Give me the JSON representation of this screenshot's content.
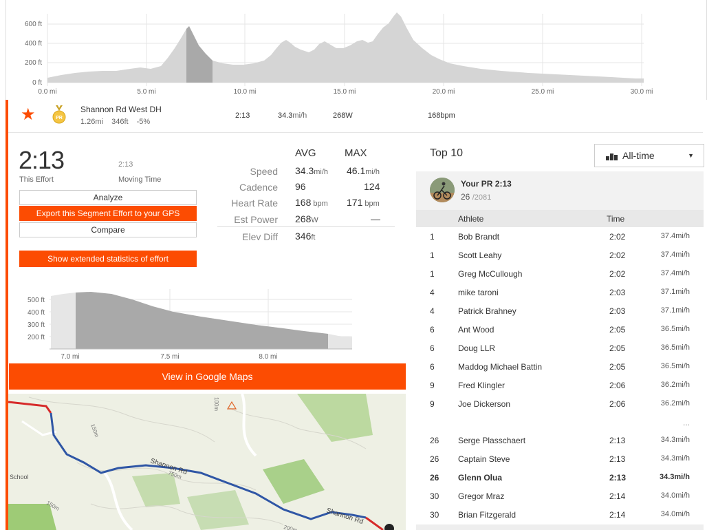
{
  "top_elevation": {
    "y_ticks": [
      "600 ft",
      "400 ft",
      "200 ft",
      "0 ft"
    ],
    "x_ticks": [
      "0.0 mi",
      "5.0 mi",
      "10.0 mi",
      "15.0 mi",
      "20.0 mi",
      "25.0 mi",
      "30.0 mi"
    ]
  },
  "segment": {
    "name": "Shannon Rd West DH",
    "distance": "1.26mi",
    "elev": "346ft",
    "grade": "-5%",
    "time": "2:13",
    "speed": "34.3",
    "speed_unit": "mi/h",
    "power": "268W",
    "hr": "168bpm",
    "pr_badge": "PR"
  },
  "effort": {
    "time": "2:13",
    "time_label": "This Effort",
    "moving_time": "2:13",
    "moving_label": "Moving Time"
  },
  "buttons": {
    "analyze": "Analyze",
    "export": "Export this Segment Effort to your GPS",
    "compare": "Compare",
    "extended": "Show extended statistics of effort",
    "maps": "View in Google Maps"
  },
  "stats": {
    "avg_header": "AVG",
    "max_header": "MAX",
    "rows": [
      {
        "label": "Speed",
        "avg": "34.3",
        "avg_unit": "mi/h",
        "max": "46.1",
        "max_unit": "mi/h"
      },
      {
        "label": "Cadence",
        "avg": "96",
        "avg_unit": "",
        "max": "124",
        "max_unit": ""
      },
      {
        "label": "Heart Rate",
        "avg": "168",
        "avg_unit": " bpm",
        "max": "171",
        "max_unit": " bpm"
      },
      {
        "label": "Est Power",
        "avg": "268",
        "avg_unit": "W",
        "max": "—",
        "max_unit": ""
      },
      {
        "label": "Elev Diff",
        "avg": "346",
        "avg_unit": "ft",
        "max": "",
        "max_unit": ""
      }
    ]
  },
  "mini_elevation": {
    "y_ticks": [
      "500 ft",
      "400 ft",
      "300 ft",
      "200 ft"
    ],
    "x_ticks": [
      "7.0 mi",
      "7.5 mi",
      "8.0 mi"
    ]
  },
  "map": {
    "labels": [
      "Shannon Rd",
      "Shannon Rd",
      "School",
      "150m",
      "150m",
      "200m",
      "100m",
      "750m"
    ]
  },
  "top10": {
    "title": "Top 10",
    "filter": "All-time",
    "pr_title": "Your PR 2:13",
    "pr_rank": "26",
    "pr_total": "/2081",
    "col_athlete": "Athlete",
    "col_time": "Time",
    "ellipsis": "...",
    "rows": [
      {
        "rank": "1",
        "name": "Bob Brandt",
        "time": "2:02",
        "speed": "37.4mi/h"
      },
      {
        "rank": "1",
        "name": "Scott Leahy",
        "time": "2:02",
        "speed": "37.4mi/h"
      },
      {
        "rank": "1",
        "name": "Greg McCullough",
        "time": "2:02",
        "speed": "37.4mi/h"
      },
      {
        "rank": "4",
        "name": "mike taroni",
        "time": "2:03",
        "speed": "37.1mi/h"
      },
      {
        "rank": "4",
        "name": "Patrick Brahney",
        "time": "2:03",
        "speed": "37.1mi/h"
      },
      {
        "rank": "6",
        "name": "Ant Wood",
        "time": "2:05",
        "speed": "36.5mi/h"
      },
      {
        "rank": "6",
        "name": "Doug LLR",
        "time": "2:05",
        "speed": "36.5mi/h"
      },
      {
        "rank": "6",
        "name": "Maddog Michael Battin",
        "time": "2:05",
        "speed": "36.5mi/h"
      },
      {
        "rank": "9",
        "name": "Fred Klingler",
        "time": "2:06",
        "speed": "36.2mi/h"
      },
      {
        "rank": "9",
        "name": "Joe Dickerson",
        "time": "2:06",
        "speed": "36.2mi/h"
      }
    ],
    "rows_after": [
      {
        "rank": "26",
        "name": "Serge Plasschaert",
        "time": "2:13",
        "speed": "34.3mi/h"
      },
      {
        "rank": "26",
        "name": "Captain Steve",
        "time": "2:13",
        "speed": "34.3mi/h"
      },
      {
        "rank": "26",
        "name": "Glenn Olua",
        "time": "2:13",
        "speed": "34.3mi/h"
      },
      {
        "rank": "30",
        "name": "Gregor Mraz",
        "time": "2:14",
        "speed": "34.0mi/h"
      },
      {
        "rank": "30",
        "name": "Brian Fitzgerald",
        "time": "2:14",
        "speed": "34.0mi/h"
      }
    ]
  }
}
